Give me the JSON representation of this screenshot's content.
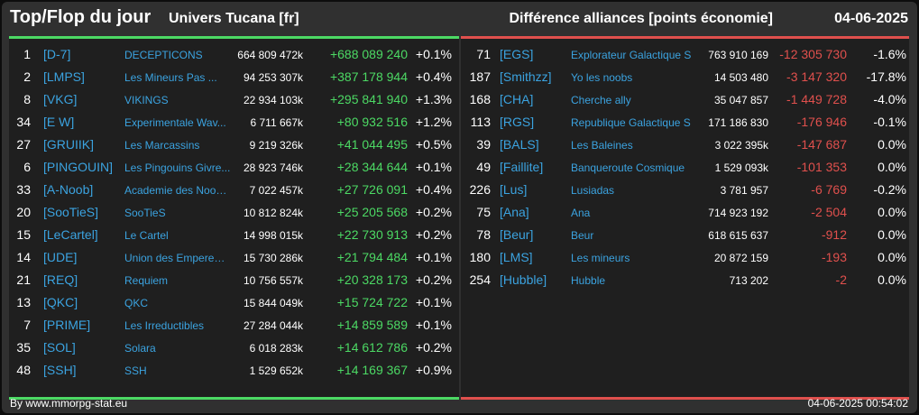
{
  "header": {
    "title": "Top/Flop du jour",
    "universe": "Univers Tucana [fr]",
    "metric": "Différence alliances [points économie]",
    "date": "04-06-2025"
  },
  "top": [
    {
      "rank": "1",
      "tag": "[D-7]",
      "name": "DECEPTICONS",
      "points": "664 809 472k",
      "diff": "+688 089 240",
      "pct": "+0.1%"
    },
    {
      "rank": "2",
      "tag": "[LMPS]",
      "name": "Les Mineurs Pas ...",
      "points": "94 253 307k",
      "diff": "+387 178 944",
      "pct": "+0.4%"
    },
    {
      "rank": "8",
      "tag": "[VKG]",
      "name": "VIKINGS",
      "points": "22 934 103k",
      "diff": "+295 841 940",
      "pct": "+1.3%"
    },
    {
      "rank": "34",
      "tag": "[E W]",
      "name": "Experimentale Wav...",
      "points": "6 711 667k",
      "diff": "+80 932 516",
      "pct": "+1.2%"
    },
    {
      "rank": "27",
      "tag": "[GRUIIK]",
      "name": "Les Marcassins",
      "points": "9 219 326k",
      "diff": "+41 044 495",
      "pct": "+0.5%"
    },
    {
      "rank": "6",
      "tag": "[PINGOUIN]",
      "name": "Les Pingouins Givre...",
      "points": "28 923 746k",
      "diff": "+28 344 644",
      "pct": "+0.1%"
    },
    {
      "rank": "33",
      "tag": "[A-Noob]",
      "name": "Academie des Noob...",
      "points": "7 022 457k",
      "diff": "+27 726 091",
      "pct": "+0.4%"
    },
    {
      "rank": "20",
      "tag": "[SooTieS]",
      "name": "SooTieS",
      "points": "10 812 824k",
      "diff": "+25 205 568",
      "pct": "+0.2%"
    },
    {
      "rank": "15",
      "tag": "[LeCartel]",
      "name": "Le Cartel",
      "points": "14 998 015k",
      "diff": "+22 730 913",
      "pct": "+0.2%"
    },
    {
      "rank": "14",
      "tag": "[UDE]",
      "name": "Union des Empereur...",
      "points": "15 730 286k",
      "diff": "+21 794 484",
      "pct": "+0.1%"
    },
    {
      "rank": "21",
      "tag": "[REQ]",
      "name": "Requiem",
      "points": "10 756 557k",
      "diff": "+20 328 173",
      "pct": "+0.2%"
    },
    {
      "rank": "13",
      "tag": "[QKC]",
      "name": "QKC",
      "points": "15 844 049k",
      "diff": "+15 724 722",
      "pct": "+0.1%"
    },
    {
      "rank": "7",
      "tag": "[PRIME]",
      "name": "Les Irreductibles",
      "points": "27 284 044k",
      "diff": "+14 859 589",
      "pct": "+0.1%"
    },
    {
      "rank": "35",
      "tag": "[SOL]",
      "name": "Solara",
      "points": "6 018 283k",
      "diff": "+14 612 786",
      "pct": "+0.2%"
    },
    {
      "rank": "48",
      "tag": "[SSH]",
      "name": "SSH",
      "points": "1 529 652k",
      "diff": "+14 169 367",
      "pct": "+0.9%"
    }
  ],
  "flop": [
    {
      "rank": "71",
      "tag": "[EGS]",
      "name": "Explorateur Galactique S",
      "points": "763 910 169",
      "diff": "-12 305 730",
      "pct": "-1.6%"
    },
    {
      "rank": "187",
      "tag": "[Smithzz]",
      "name": "Yo les noobs",
      "points": "14 503 480",
      "diff": "-3 147 320",
      "pct": "-17.8%"
    },
    {
      "rank": "168",
      "tag": "[CHA]",
      "name": "Cherche ally",
      "points": "35 047 857",
      "diff": "-1 449 728",
      "pct": "-4.0%"
    },
    {
      "rank": "113",
      "tag": "[RGS]",
      "name": "Republique Galactique S",
      "points": "171 186 830",
      "diff": "-176 946",
      "pct": "-0.1%"
    },
    {
      "rank": "39",
      "tag": "[BALS]",
      "name": "Les Baleines",
      "points": "3 022 395k",
      "diff": "-147 687",
      "pct": "0.0%"
    },
    {
      "rank": "49",
      "tag": "[Faillite]",
      "name": "Banqueroute Cosmique",
      "points": "1 529 093k",
      "diff": "-101 353",
      "pct": "0.0%"
    },
    {
      "rank": "226",
      "tag": "[Lus]",
      "name": "Lusiadas",
      "points": "3 781 957",
      "diff": "-6 769",
      "pct": "-0.2%"
    },
    {
      "rank": "75",
      "tag": "[Ana]",
      "name": "Ana",
      "points": "714 923 192",
      "diff": "-2 504",
      "pct": "0.0%"
    },
    {
      "rank": "78",
      "tag": "[Beur]",
      "name": "Beur",
      "points": "618 615 637",
      "diff": "-912",
      "pct": "0.0%"
    },
    {
      "rank": "180",
      "tag": "[LMS]",
      "name": "Les mineurs",
      "points": "20 872 159",
      "diff": "-193",
      "pct": "0.0%"
    },
    {
      "rank": "254",
      "tag": "[Hubble]",
      "name": "Hubble",
      "points": "713 202",
      "diff": "-2",
      "pct": "0.0%"
    }
  ],
  "footer": {
    "source": "By www.mmorpg-stat.eu",
    "timestamp": "04-06-2025 00:54:02"
  },
  "colors": {
    "gain": "#4cd964",
    "loss": "#e0504d",
    "link": "#3ba3e0"
  }
}
